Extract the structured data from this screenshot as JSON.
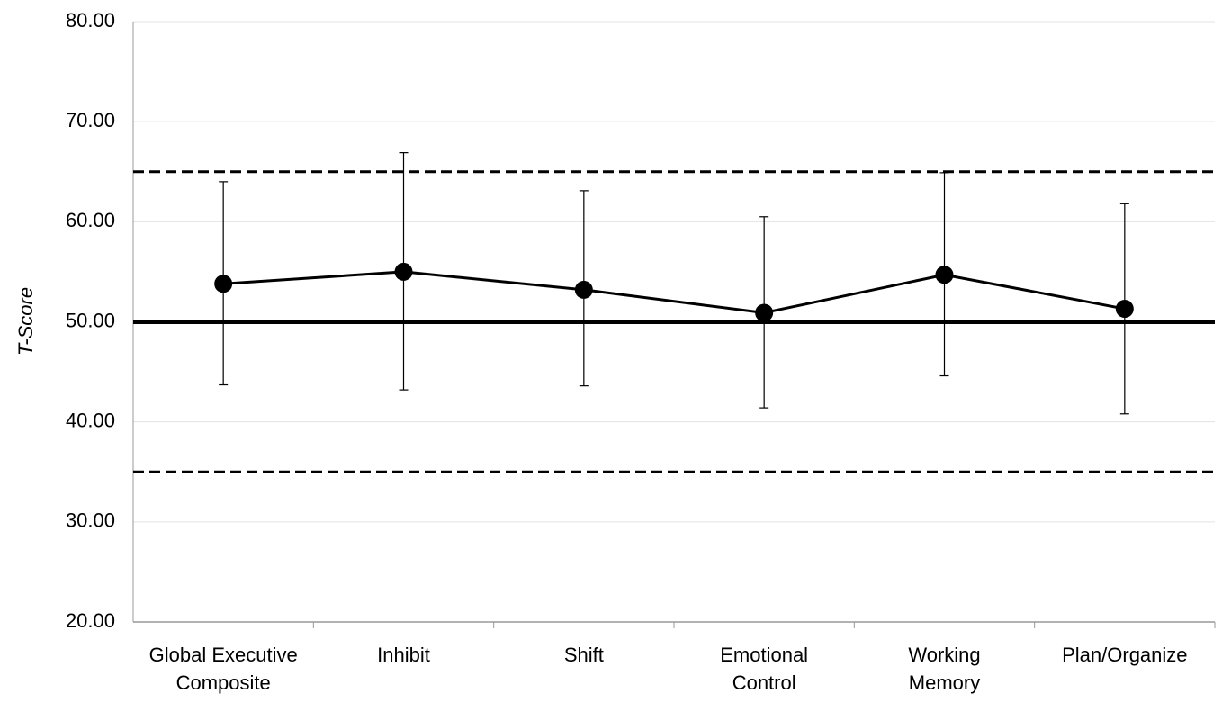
{
  "chart_data": {
    "type": "line",
    "y_label": "T-Score",
    "categories": [
      "Global Executive\nComposite",
      "Inhibit",
      "Shift",
      "Emotional\nControl",
      "Working\nMemory",
      "Plan/Organize"
    ],
    "series": [
      {
        "name": "T-Score",
        "color": "#000000",
        "values": [
          53.8,
          55.0,
          53.2,
          50.9,
          54.7,
          51.3
        ],
        "lower": [
          43.7,
          43.2,
          43.6,
          41.4,
          44.6,
          40.8
        ],
        "upper": [
          64.0,
          66.9,
          63.1,
          60.5,
          64.9,
          61.8
        ]
      }
    ],
    "reference_lines": [
      {
        "value": 65,
        "style": "dashed"
      },
      {
        "value": 50,
        "style": "solid"
      },
      {
        "value": 35,
        "style": "dashed"
      }
    ],
    "ylim": [
      20,
      80
    ],
    "yticks": [
      {
        "value": 20,
        "label": "20.00"
      },
      {
        "value": 30,
        "label": "30.00"
      },
      {
        "value": 40,
        "label": "40.00"
      },
      {
        "value": 50,
        "label": "50.00"
      },
      {
        "value": 60,
        "label": "60.00"
      },
      {
        "value": 70,
        "label": "70.00"
      },
      {
        "value": 80,
        "label": "80.00"
      }
    ],
    "grid": true
  }
}
